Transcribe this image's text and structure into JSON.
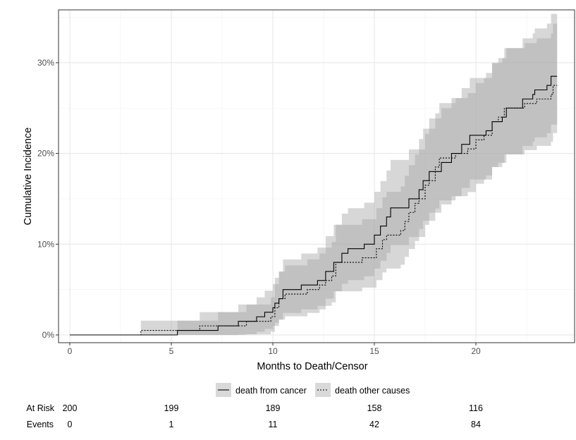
{
  "chart_data": {
    "type": "line",
    "subtype": "step cumulative incidence with confidence bands",
    "xlabel": "Months to Death/Censor",
    "ylabel": "Cumulative Incidence",
    "xlim": [
      -0.5,
      24.5
    ],
    "ylim": [
      -0.8,
      35.5
    ],
    "x_ticks": [
      0,
      5,
      10,
      15,
      20
    ],
    "x_tick_labels": [
      "0",
      "5",
      "10",
      "15",
      "20"
    ],
    "y_ticks": [
      0,
      10,
      20,
      30
    ],
    "y_tick_labels": [
      "0%",
      "10%",
      "20%",
      "30%"
    ],
    "grid": true,
    "legend_position": "bottom",
    "colors": {
      "line": "#000000",
      "band": "#a6a6a6"
    },
    "series": [
      {
        "name": "death from cancer",
        "linestyle": "solid",
        "x_end": 24.0,
        "steps": [
          [
            0,
            0
          ],
          [
            5.3,
            0.5
          ],
          [
            7.3,
            1.0
          ],
          [
            8.3,
            1.5
          ],
          [
            9.2,
            2.0
          ],
          [
            9.6,
            2.5
          ],
          [
            10.0,
            3.0
          ],
          [
            10.1,
            3.5
          ],
          [
            10.3,
            4.0
          ],
          [
            10.5,
            5.0
          ],
          [
            11.4,
            5.5
          ],
          [
            12.2,
            6.0
          ],
          [
            12.6,
            7.0
          ],
          [
            13.0,
            8.0
          ],
          [
            13.4,
            9.0
          ],
          [
            13.7,
            9.5
          ],
          [
            14.5,
            10.0
          ],
          [
            15.0,
            11.0
          ],
          [
            15.3,
            12.0
          ],
          [
            15.6,
            13.0
          ],
          [
            15.8,
            14.0
          ],
          [
            16.7,
            15.0
          ],
          [
            17.2,
            16.0
          ],
          [
            17.4,
            17.0
          ],
          [
            17.7,
            18.0
          ],
          [
            18.3,
            19.0
          ],
          [
            18.8,
            20.0
          ],
          [
            19.3,
            21.0
          ],
          [
            19.7,
            22.0
          ],
          [
            20.5,
            22.5
          ],
          [
            20.8,
            23.5
          ],
          [
            21.3,
            24.0
          ],
          [
            21.5,
            25.0
          ],
          [
            22.3,
            26.0
          ],
          [
            22.8,
            26.5
          ],
          [
            22.9,
            27.0
          ],
          [
            23.5,
            27.5
          ],
          [
            23.7,
            28.5
          ]
        ]
      },
      {
        "name": "death other causes",
        "linestyle": "dotted",
        "x_end": 24.0,
        "steps": [
          [
            0,
            0
          ],
          [
            3.5,
            0.5
          ],
          [
            6.4,
            1.0
          ],
          [
            8.7,
            1.5
          ],
          [
            9.9,
            2.0
          ],
          [
            10.1,
            3.0
          ],
          [
            10.3,
            4.0
          ],
          [
            10.6,
            4.5
          ],
          [
            11.7,
            5.0
          ],
          [
            12.3,
            5.5
          ],
          [
            12.6,
            6.0
          ],
          [
            12.9,
            6.5
          ],
          [
            13.1,
            8.0
          ],
          [
            14.4,
            8.5
          ],
          [
            15.1,
            9.5
          ],
          [
            15.4,
            10.5
          ],
          [
            15.6,
            11.0
          ],
          [
            16.3,
            11.5
          ],
          [
            16.5,
            12.5
          ],
          [
            16.7,
            13.5
          ],
          [
            17.0,
            14.5
          ],
          [
            17.2,
            15.0
          ],
          [
            17.5,
            16.5
          ],
          [
            17.7,
            17.0
          ],
          [
            18.0,
            18.5
          ],
          [
            18.2,
            19.5
          ],
          [
            19.0,
            20.0
          ],
          [
            19.6,
            20.5
          ],
          [
            20.0,
            21.5
          ],
          [
            20.4,
            22.0
          ],
          [
            20.8,
            23.5
          ],
          [
            21.1,
            24.0
          ],
          [
            21.4,
            25.0
          ],
          [
            22.4,
            25.5
          ],
          [
            23.0,
            26.0
          ],
          [
            23.7,
            26.5
          ],
          [
            23.8,
            27.5
          ]
        ]
      }
    ],
    "risk_table": {
      "times": [
        0,
        5,
        10,
        15,
        20
      ],
      "rows": [
        {
          "label": "At Risk",
          "values": [
            "200",
            "199",
            "189",
            "158",
            "116"
          ]
        },
        {
          "label": "Events",
          "values": [
            "0",
            "1",
            "11",
            "42",
            "84"
          ]
        }
      ]
    }
  }
}
